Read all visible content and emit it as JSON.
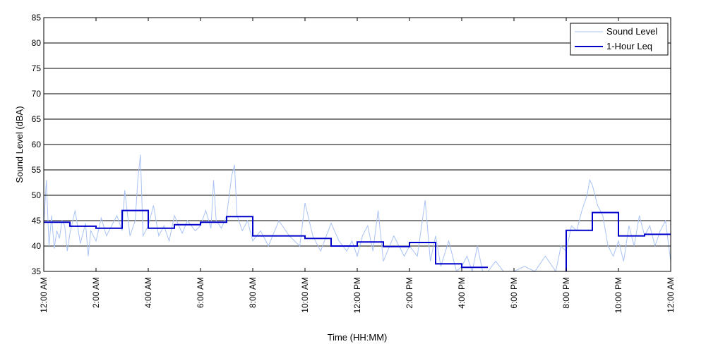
{
  "chart_data": {
    "type": "line",
    "xlabel": "Time (HH:MM)",
    "ylabel": "Sound Level (dBA)",
    "xlim": [
      0,
      24
    ],
    "ylim": [
      35,
      85
    ],
    "yticks": [
      35,
      40,
      45,
      50,
      55,
      60,
      65,
      70,
      75,
      80,
      85
    ],
    "y_tick_labels": [
      "35",
      "40",
      "45",
      "50",
      "55",
      "60",
      "65",
      "70",
      "75",
      "80",
      "85"
    ],
    "xticks": [
      0,
      2,
      4,
      6,
      8,
      10,
      12,
      14,
      16,
      18,
      20,
      22,
      24
    ],
    "x_tick_labels": [
      "12:00 AM",
      "2:00 AM",
      "4:00 AM",
      "6:00 AM",
      "8:00 AM",
      "10:00 AM",
      "12:00 PM",
      "2:00 PM",
      "4:00 PM",
      "6:00 PM",
      "8:00 PM",
      "10:00 PM",
      "12:00 AM"
    ],
    "grid": true,
    "legend_position": "top-right",
    "series": [
      {
        "name": "Sound Level",
        "color": "#a9c3f5",
        "x": [
          0.0,
          0.1,
          0.2,
          0.3,
          0.4,
          0.5,
          0.6,
          0.7,
          0.8,
          0.9,
          1.0,
          1.2,
          1.4,
          1.6,
          1.7,
          1.8,
          2.0,
          2.2,
          2.4,
          2.6,
          2.8,
          3.0,
          3.1,
          3.3,
          3.5,
          3.6,
          3.7,
          3.8,
          4.0,
          4.2,
          4.4,
          4.6,
          4.8,
          5.0,
          5.3,
          5.5,
          5.8,
          6.0,
          6.2,
          6.4,
          6.5,
          6.6,
          6.8,
          7.0,
          7.2,
          7.3,
          7.4,
          7.6,
          7.8,
          8.0,
          8.3,
          8.6,
          9.0,
          9.4,
          9.8,
          10.0,
          10.3,
          10.6,
          11.0,
          11.3,
          11.6,
          11.8,
          12.0,
          12.2,
          12.4,
          12.6,
          12.8,
          13.0,
          13.4,
          13.8,
          14.0,
          14.3,
          14.6,
          14.8,
          15.0,
          15.2,
          15.5,
          15.8,
          16.0,
          16.2,
          16.4,
          16.6,
          16.8,
          17.0,
          17.3,
          17.6,
          18.0,
          18.4,
          18.8,
          19.2,
          19.6,
          19.8,
          20.0,
          20.2,
          20.4,
          20.6,
          20.8,
          20.9,
          21.0,
          21.2,
          21.4,
          21.6,
          21.8,
          22.0,
          22.2,
          22.4,
          22.6,
          22.8,
          23.0,
          23.2,
          23.4,
          23.6,
          23.8,
          24.0
        ],
        "y": [
          44.0,
          53.0,
          40.0,
          46.0,
          39.5,
          43.0,
          41.5,
          45.0,
          44.0,
          39.0,
          42.5,
          47.0,
          40.5,
          44.5,
          38.0,
          43.0,
          41.0,
          45.5,
          42.0,
          44.0,
          46.0,
          43.0,
          51.0,
          42.0,
          45.0,
          53.0,
          58.0,
          42.0,
          44.0,
          48.0,
          42.0,
          44.0,
          41.0,
          46.0,
          42.5,
          45.0,
          43.0,
          44.0,
          47.0,
          43.5,
          53.0,
          45.0,
          43.5,
          46.0,
          54.0,
          56.0,
          46.0,
          43.0,
          45.0,
          41.0,
          43.0,
          40.0,
          45.0,
          42.0,
          40.0,
          48.5,
          42.0,
          39.0,
          44.5,
          41.0,
          39.0,
          41.0,
          38.0,
          42.0,
          44.0,
          39.0,
          47.0,
          37.0,
          42.0,
          38.0,
          40.0,
          38.0,
          49.0,
          37.0,
          42.0,
          36.0,
          41.0,
          35.0,
          36.0,
          38.0,
          35.0,
          40.0,
          35.0,
          35.0,
          37.0,
          35.0,
          35.0,
          36.0,
          35.0,
          38.0,
          35.0,
          40.0,
          39.0,
          44.0,
          43.0,
          47.0,
          50.0,
          53.0,
          52.0,
          48.0,
          46.0,
          40.0,
          38.0,
          41.0,
          37.0,
          44.0,
          40.0,
          46.0,
          42.0,
          44.0,
          40.0,
          43.0,
          45.0,
          37.0
        ]
      },
      {
        "name": "1-Hour Leq",
        "color": "#0000cc",
        "step": true,
        "x": [
          0,
          1,
          2,
          3,
          4,
          5,
          6,
          7,
          8,
          9,
          10,
          11,
          12,
          13,
          14,
          15,
          16,
          17,
          18,
          19,
          20,
          21,
          22,
          23
        ],
        "y": [
          44.7,
          43.9,
          43.5,
          47.0,
          43.5,
          44.2,
          44.7,
          45.8,
          42.0,
          42.0,
          41.5,
          40.0,
          40.8,
          39.9,
          40.7,
          36.5,
          35.8,
          null,
          null,
          null,
          43.1,
          46.6,
          42.0,
          42.3
        ]
      }
    ]
  }
}
